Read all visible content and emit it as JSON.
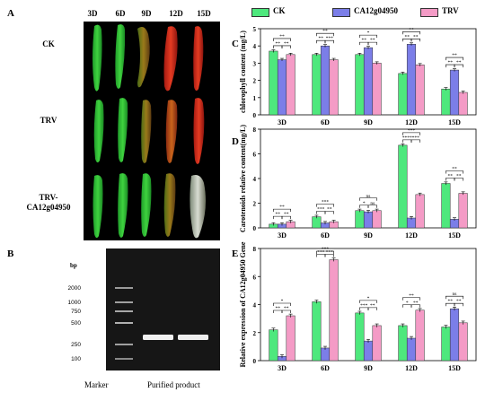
{
  "panels": {
    "a": "A",
    "b": "B",
    "c": "C",
    "d": "D",
    "e": "E"
  },
  "photo": {
    "columns": [
      "3D",
      "6D",
      "9D",
      "12D",
      "15D"
    ],
    "rows": [
      "CK",
      "TRV",
      "TRV-\nCA12g04950"
    ]
  },
  "gel": {
    "bp_unit": "bp",
    "ladder": [
      "2000",
      "1000",
      "750",
      "500",
      "250",
      "100"
    ],
    "marker_label": "Marker",
    "product_label": "Purified product"
  },
  "legend": [
    {
      "name": "CK",
      "color": "#4ee87d"
    },
    {
      "name": "CA12g04950",
      "color": "#7b7ee8"
    },
    {
      "name": "TRV",
      "color": "#f49bc6"
    }
  ],
  "chart_data": [
    {
      "id": "C",
      "type": "bar",
      "ylabel": "chlorophyll content (mg/L)",
      "categories": [
        "3D",
        "6D",
        "9D",
        "12D",
        "15D"
      ],
      "ylim": [
        0,
        5
      ],
      "yticks": [
        "0",
        "1",
        "2",
        "3",
        "4",
        "5"
      ],
      "series": [
        {
          "name": "CK",
          "values": [
            3.7,
            3.5,
            3.5,
            2.4,
            1.5
          ]
        },
        {
          "name": "CA12g04950",
          "values": [
            3.2,
            4.0,
            3.9,
            4.1,
            2.6
          ]
        },
        {
          "name": "TRV",
          "values": [
            3.5,
            3.2,
            3.0,
            2.9,
            1.3
          ]
        }
      ],
      "significance": [
        [
          "**",
          "**",
          "**"
        ],
        [
          "**",
          "**",
          "***"
        ],
        [
          "*",
          "**",
          "**"
        ],
        [
          "**",
          "**",
          "**"
        ],
        [
          "**",
          "**",
          "**"
        ]
      ]
    },
    {
      "id": "D",
      "type": "bar",
      "ylabel": "Carotenoids relative content(mg/L)",
      "categories": [
        "3D",
        "6D",
        "9D",
        "12D",
        "15D"
      ],
      "ylim": [
        0,
        8
      ],
      "yticks": [
        "0",
        "2",
        "4",
        "6",
        "8"
      ],
      "series": [
        {
          "name": "CK",
          "values": [
            0.3,
            0.9,
            1.4,
            6.7,
            3.6
          ]
        },
        {
          "name": "CA12g04950",
          "values": [
            0.3,
            0.4,
            1.3,
            0.8,
            0.7
          ]
        },
        {
          "name": "TRV",
          "values": [
            0.5,
            0.5,
            1.4,
            2.7,
            2.8
          ]
        }
      ],
      "significance": [
        [
          "**",
          "**",
          "**"
        ],
        [
          "***",
          "***",
          "**"
        ],
        [
          "ns",
          "*",
          "ns"
        ],
        [
          "***",
          "****",
          "***"
        ],
        [
          "**",
          "**",
          "**"
        ]
      ]
    },
    {
      "id": "E",
      "type": "bar",
      "ylabel": "Relative expression of CA12g04950 Gene",
      "categories": [
        "3D",
        "6D",
        "9D",
        "12D",
        "15D"
      ],
      "ylim": [
        0,
        8
      ],
      "yticks": [
        "0",
        "2",
        "4",
        "6",
        "8"
      ],
      "series": [
        {
          "name": "CK",
          "values": [
            2.2,
            4.2,
            3.4,
            2.5,
            2.4
          ]
        },
        {
          "name": "CA12g04950",
          "values": [
            0.3,
            0.9,
            1.4,
            1.6,
            3.7
          ]
        },
        {
          "name": "TRV",
          "values": [
            3.2,
            7.2,
            2.5,
            3.6,
            2.7
          ]
        }
      ],
      "significance": [
        [
          "*",
          "**",
          "**"
        ],
        [
          "***",
          "***",
          "***"
        ],
        [
          "*",
          "***",
          "**"
        ],
        [
          "**",
          "*",
          "**"
        ],
        [
          "ns",
          "**",
          "**"
        ]
      ]
    }
  ]
}
